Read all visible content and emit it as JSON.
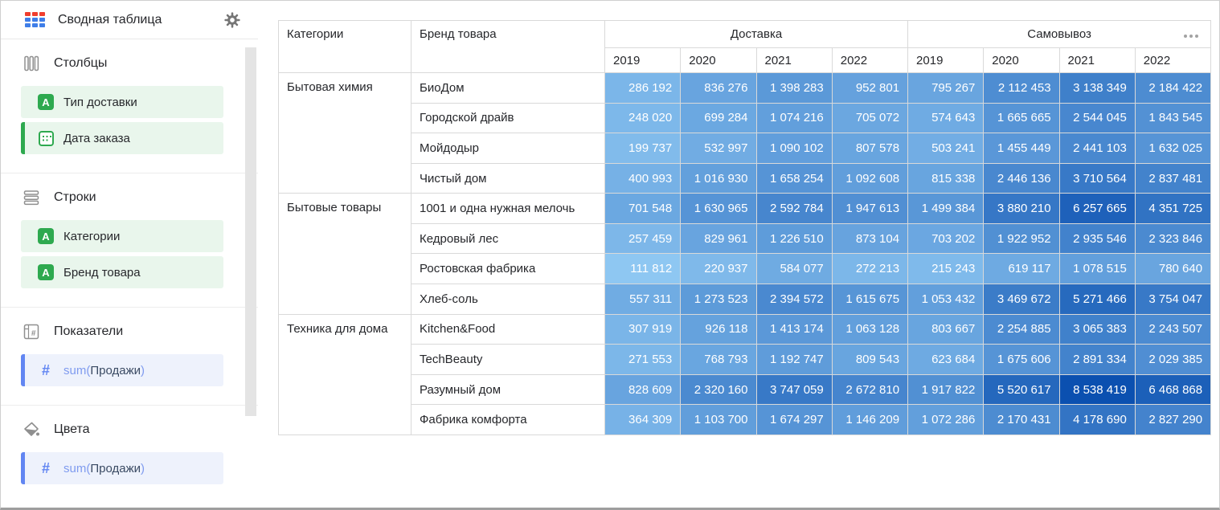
{
  "app": {
    "title": "Сводная таблица"
  },
  "colors": {
    "logo_red": "#F03E2E",
    "logo_blue": "#3F7EE8",
    "accent_green": "#2EA94F",
    "accent_blue": "#6286F2",
    "chip_green_bg": "#E9F6EC",
    "chip_blue_bg": "#EEF2FC",
    "fn_text": "#7F9BEF",
    "field_text": "#3A4A63",
    "heat_min": "#8EC7F2",
    "heat_max": "#0B50B0"
  },
  "sidebar": {
    "sections": [
      {
        "id": "columns",
        "label": "Столбцы",
        "fields": [
          {
            "kind": "dimension",
            "icon": "string",
            "label": "Тип доставки",
            "accent": false
          },
          {
            "kind": "dimension",
            "icon": "date",
            "label": "Дата заказа",
            "accent": true
          }
        ]
      },
      {
        "id": "rows",
        "label": "Строки",
        "fields": [
          {
            "kind": "dimension",
            "icon": "string",
            "label": "Категории",
            "accent": false
          },
          {
            "kind": "dimension",
            "icon": "string",
            "label": "Бренд товара",
            "accent": false
          }
        ]
      },
      {
        "id": "measures",
        "label": "Показатели",
        "fields": [
          {
            "kind": "measure",
            "icon": "number",
            "fn": "sum(",
            "field": "Продажи",
            "close": ")",
            "accent": true
          }
        ]
      },
      {
        "id": "colors",
        "label": "Цвета",
        "fields": [
          {
            "kind": "measure",
            "icon": "number",
            "fn": "sum(",
            "field": "Продажи",
            "close": ")",
            "accent": true
          }
        ]
      }
    ]
  },
  "pivot": {
    "corner": [
      "Категории",
      "Бренд товара"
    ],
    "groups": [
      {
        "label": "Доставка",
        "years": [
          "2019",
          "2020",
          "2021",
          "2022"
        ]
      },
      {
        "label": "Самовывоз",
        "years": [
          "2019",
          "2020",
          "2021",
          "2022"
        ]
      }
    ],
    "categories": [
      {
        "name": "Бытовая химия",
        "brands": [
          {
            "name": "БиоДом",
            "values": [
              286192,
              836276,
              1398283,
              952801,
              795267,
              2112453,
              3138349,
              2184422
            ]
          },
          {
            "name": "Городской драйв",
            "values": [
              248020,
              699284,
              1074216,
              705072,
              574643,
              1665665,
              2544045,
              1843545
            ]
          },
          {
            "name": "Мойдодыр",
            "values": [
              199737,
              532997,
              1090102,
              807578,
              503241,
              1455449,
              2441103,
              1632025
            ]
          },
          {
            "name": "Чистый дом",
            "values": [
              400993,
              1016930,
              1658254,
              1092608,
              815338,
              2446136,
              3710564,
              2837481
            ]
          }
        ]
      },
      {
        "name": "Бытовые товары",
        "brands": [
          {
            "name": "1001 и одна нужная мелочь",
            "values": [
              701548,
              1630965,
              2592784,
              1947613,
              1499384,
              3880210,
              6257665,
              4351725
            ]
          },
          {
            "name": "Кедровый лес",
            "values": [
              257459,
              829961,
              1226510,
              873104,
              703202,
              1922952,
              2935546,
              2323846
            ]
          },
          {
            "name": "Ростовская фабрика",
            "values": [
              111812,
              220937,
              584077,
              272213,
              215243,
              619117,
              1078515,
              780640
            ]
          },
          {
            "name": "Хлеб-соль",
            "values": [
              557311,
              1273523,
              2394572,
              1615675,
              1053432,
              3469672,
              5271466,
              3754047
            ]
          }
        ]
      },
      {
        "name": "Техника для дома",
        "brands": [
          {
            "name": "Kitchen&Food",
            "values": [
              307919,
              926118,
              1413174,
              1063128,
              803667,
              2254885,
              3065383,
              2243507
            ]
          },
          {
            "name": "TechBeauty",
            "values": [
              271553,
              768793,
              1192747,
              809543,
              623684,
              1675606,
              2891334,
              2029385
            ]
          },
          {
            "name": "Разумный дом",
            "values": [
              828609,
              2320160,
              3747059,
              2672810,
              1917822,
              5520617,
              8538419,
              6468868
            ]
          },
          {
            "name": "Фабрика комфорта",
            "values": [
              364309,
              1103700,
              1674297,
              1146209,
              1072286,
              2170431,
              4178690,
              2827290
            ]
          }
        ]
      }
    ]
  }
}
